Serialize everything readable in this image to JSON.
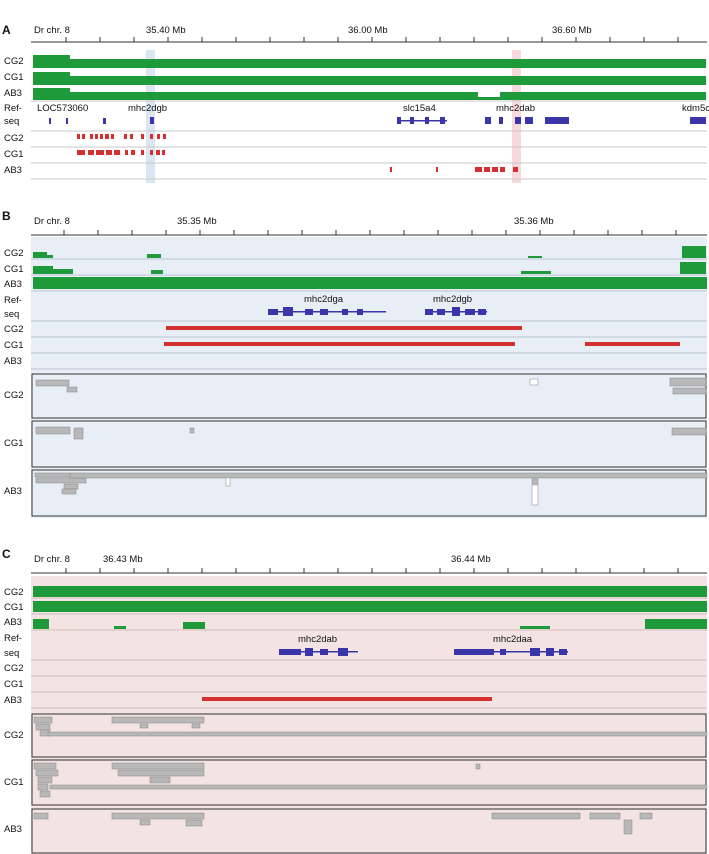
{
  "panels": [
    {
      "letter": "A",
      "chrom_label": "Dr chr. 8",
      "ticks": [
        "35.40 Mb",
        "36.00 Mb",
        "36.60 Mb"
      ],
      "tracks": [
        "CG2",
        "CG1",
        "AB3"
      ],
      "refseq_label": [
        "Ref-",
        "seq"
      ],
      "genes": [
        "LOC573060",
        "mhc2dgb",
        "slc15a4",
        "mhc2dab",
        "kdm5c"
      ],
      "cnv_rows": [
        "CG2",
        "CG1",
        "AB3"
      ]
    },
    {
      "letter": "B",
      "chrom_label": "Dr chr. 8",
      "ticks": [
        "35.35 Mb",
        "35.36 Mb"
      ],
      "tracks": [
        "CG2",
        "CG1",
        "AB3"
      ],
      "refseq_label": [
        "Ref-",
        "seq"
      ],
      "genes": [
        "mhc2dga",
        "mhc2dgb"
      ],
      "cnv_rows": [
        "CG2",
        "CG1",
        "AB3"
      ],
      "read_rows": [
        "CG2",
        "CG1",
        "AB3"
      ]
    },
    {
      "letter": "C",
      "chrom_label": "Dr chr. 8",
      "ticks": [
        "36.43 Mb",
        "36.44 Mb"
      ],
      "tracks": [
        "CG2",
        "CG1",
        "AB3"
      ],
      "refseq_label": [
        "Ref-",
        "seq"
      ],
      "genes": [
        "mhc2dab",
        "mhc2daa"
      ],
      "cnv_rows": [
        "CG2",
        "CG1",
        "AB3"
      ],
      "read_rows": [
        "CG2",
        "CG1",
        "AB3"
      ]
    }
  ],
  "colors": {
    "coverage": "#1e9a3a",
    "gene": "#3a35a8",
    "deletion": "#d43030",
    "panelB_bg": "#e7eef6",
    "panelC_bg": "#f3e3e3"
  }
}
